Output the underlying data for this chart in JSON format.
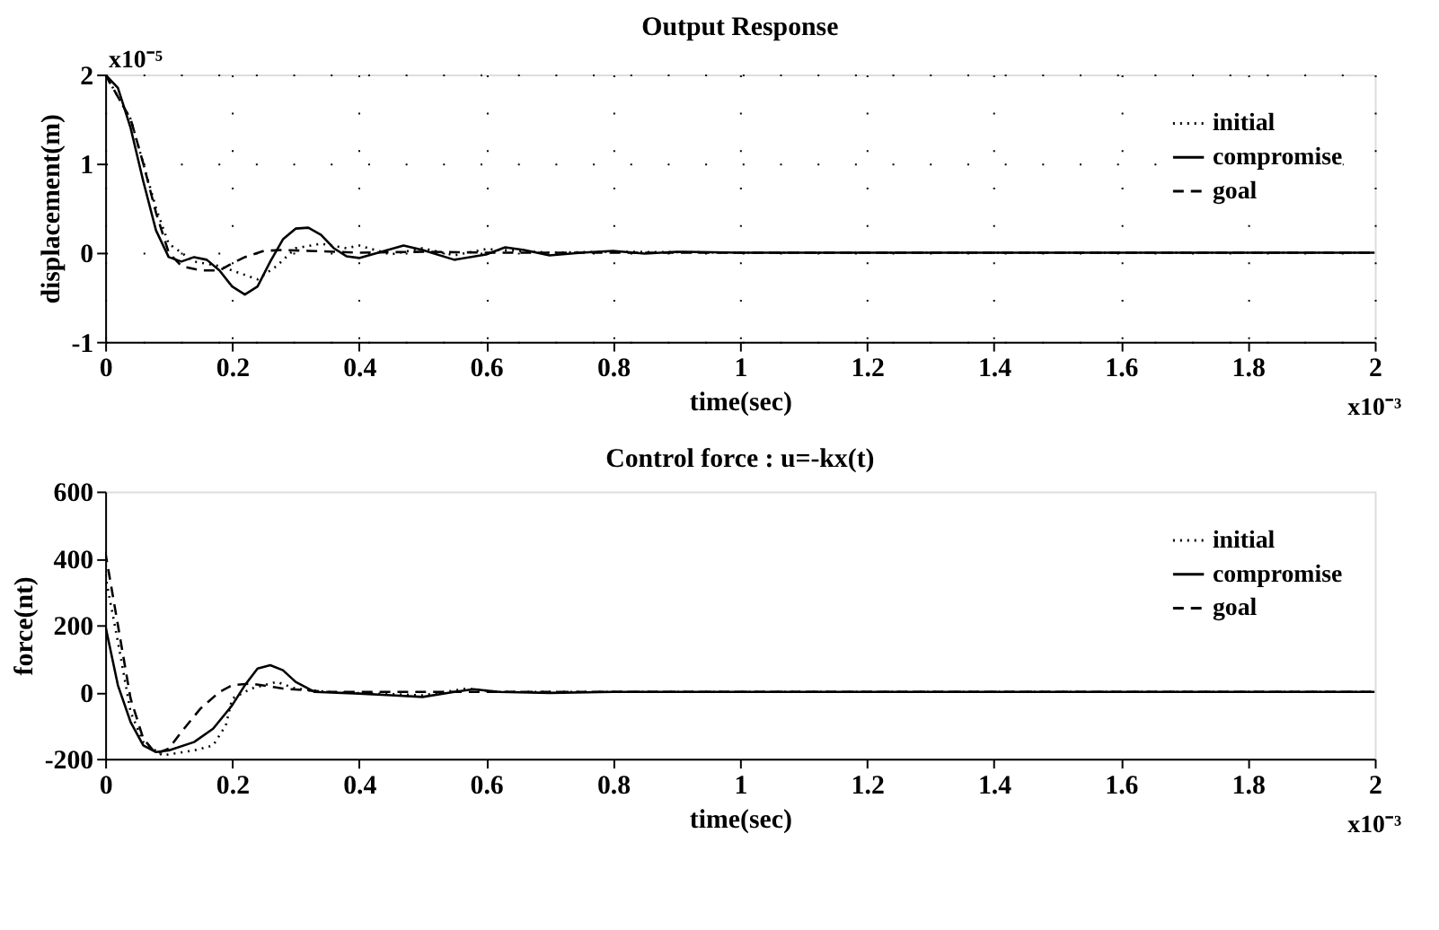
{
  "chart_data": [
    {
      "type": "line",
      "title": "Output Response",
      "xlabel": "time(sec)",
      "ylabel": "displacement(m)",
      "xlim": [
        0,
        2
      ],
      "xticks": [
        0,
        0.2,
        0.4,
        0.6,
        0.8,
        1,
        1.2,
        1.4,
        1.6,
        1.8,
        2
      ],
      "ylim": [
        -1,
        2
      ],
      "yticks": [
        -1,
        0,
        1,
        2
      ],
      "grid": true,
      "legend": "top right",
      "annotations": [
        "x10⁻⁵",
        "x10⁻³"
      ],
      "series": [
        {
          "name": "initial",
          "color": "#000000",
          "line_style": "dotted",
          "x": [
            0,
            0.04,
            0.06,
            0.08,
            0.1,
            0.14,
            0.18,
            0.2,
            0.24,
            0.27,
            0.3,
            0.34,
            0.38,
            0.4,
            0.45,
            0.5,
            0.55,
            0.6,
            0.7,
            0.8,
            1,
            2
          ],
          "values": [
            2,
            1.5,
            1.0,
            0.5,
            0.1,
            -0.1,
            -0.15,
            -0.2,
            -0.3,
            -0.15,
            0.05,
            0.1,
            0.05,
            0.08,
            -0.02,
            0.05,
            -0.03,
            0.04,
            0,
            0.01,
            0,
            0
          ]
        },
        {
          "name": "compromise",
          "color": "#000000",
          "line_style": "solid",
          "x": [
            0,
            0.02,
            0.04,
            0.06,
            0.08,
            0.1,
            0.12,
            0.14,
            0.16,
            0.18,
            0.2,
            0.22,
            0.24,
            0.26,
            0.28,
            0.3,
            0.32,
            0.34,
            0.36,
            0.38,
            0.4,
            0.43,
            0.47,
            0.5,
            0.55,
            0.6,
            0.63,
            0.66,
            0.7,
            0.75,
            0.8,
            0.85,
            0.9,
            1,
            2
          ],
          "values": [
            2,
            1.85,
            1.4,
            0.8,
            0.25,
            -0.05,
            -0.1,
            -0.05,
            -0.08,
            -0.2,
            -0.38,
            -0.47,
            -0.38,
            -0.1,
            0.15,
            0.27,
            0.28,
            0.2,
            0.05,
            -0.04,
            -0.06,
            0,
            0.08,
            0.03,
            -0.08,
            -0.02,
            0.06,
            0.03,
            -0.03,
            0,
            0.02,
            -0.01,
            0.01,
            0,
            0
          ]
        },
        {
          "name": "goal",
          "color": "#000000",
          "line_style": "dashed",
          "x": [
            0,
            0.04,
            0.06,
            0.08,
            0.1,
            0.12,
            0.15,
            0.18,
            0.2,
            0.22,
            0.25,
            0.28,
            0.32,
            0.4,
            0.5,
            0.6,
            2
          ],
          "values": [
            2,
            1.5,
            1.0,
            0.45,
            0.0,
            -0.15,
            -0.2,
            -0.2,
            -0.12,
            -0.05,
            0.02,
            0.03,
            0.02,
            0,
            0.01,
            0,
            0
          ]
        }
      ]
    },
    {
      "type": "line",
      "title": "Control force : u=-kx(t)",
      "xlabel": "time(sec)",
      "ylabel": "force(nt)",
      "xlim": [
        0,
        2
      ],
      "xticks": [
        0,
        0.2,
        0.4,
        0.6,
        0.8,
        1,
        1.2,
        1.4,
        1.6,
        1.8,
        2
      ],
      "ylim": [
        -200,
        600
      ],
      "yticks": [
        -200,
        0,
        200,
        400,
        600
      ],
      "legend": "top right",
      "annotations": [
        "x10⁻³"
      ],
      "series": [
        {
          "name": "initial",
          "color": "#000000",
          "line_style": "dotted",
          "x": [
            0,
            0.02,
            0.04,
            0.06,
            0.09,
            0.14,
            0.17,
            0.19,
            0.2,
            0.23,
            0.27,
            0.3,
            0.35,
            0.5,
            0.57,
            0.62,
            2
          ],
          "values": [
            350,
            150,
            -60,
            -150,
            -190,
            -175,
            -160,
            -100,
            -20,
            10,
            30,
            10,
            0,
            -10,
            10,
            0,
            0
          ]
        },
        {
          "name": "compromise",
          "color": "#000000",
          "line_style": "solid",
          "x": [
            0,
            0.02,
            0.04,
            0.06,
            0.08,
            0.1,
            0.14,
            0.17,
            0.2,
            0.22,
            0.24,
            0.26,
            0.28,
            0.3,
            0.33,
            0.4,
            0.45,
            0.5,
            0.55,
            0.58,
            0.62,
            0.7,
            0.8,
            2
          ],
          "values": [
            200,
            20,
            -90,
            -160,
            -180,
            -175,
            -150,
            -110,
            -40,
            20,
            70,
            80,
            65,
            30,
            0,
            -5,
            -10,
            -15,
            0,
            8,
            0,
            -3,
            0,
            0
          ]
        },
        {
          "name": "goal",
          "color": "#000000",
          "line_style": "dashed",
          "x": [
            0,
            0.02,
            0.04,
            0.06,
            0.08,
            0.1,
            0.12,
            0.15,
            0.18,
            0.2,
            0.23,
            0.28,
            0.35,
            2
          ],
          "values": [
            420,
            200,
            -20,
            -140,
            -185,
            -170,
            -120,
            -50,
            0,
            20,
            25,
            10,
            0,
            0
          ]
        }
      ]
    }
  ]
}
